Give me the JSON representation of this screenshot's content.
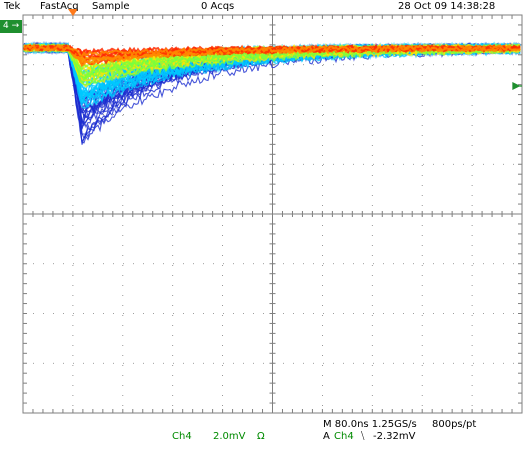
{
  "header": {
    "brand": "Tek",
    "mode": "FastAcq",
    "acq_mode": "Sample",
    "acq_count": "0 Acqs",
    "datetime": "28 Oct 09 14:38:28"
  },
  "channel_marker": {
    "label": "4 →"
  },
  "footer": {
    "channel": "Ch4",
    "scale": "2.0mV",
    "coupling": "Ω",
    "timebase": "M 80.0ns 1.25GS/s",
    "resolution": "800ps/pt",
    "trigger_prefix": "A",
    "trigger_channel": "Ch4",
    "trigger_slope": "⧹",
    "trigger_level": "-2.32mV"
  },
  "colors": {
    "graticule": "#7f7f7f",
    "channel_green": "#008a00",
    "trigger_marker": "#ff7a1a",
    "persist_low": "#1a2ccf",
    "persist_mid": "#00c8ff",
    "persist_high": "#ffe600",
    "persist_max": "#ff2a00"
  },
  "waveform": {
    "type": "persistence",
    "baseline_before_mV": 0.0,
    "trigger_time_ns": 0,
    "peak_time_ns": 30,
    "peak_min_mV": -3.6,
    "peak_typical_mV": -1.8,
    "tail_end_mV": -0.2
  }
}
